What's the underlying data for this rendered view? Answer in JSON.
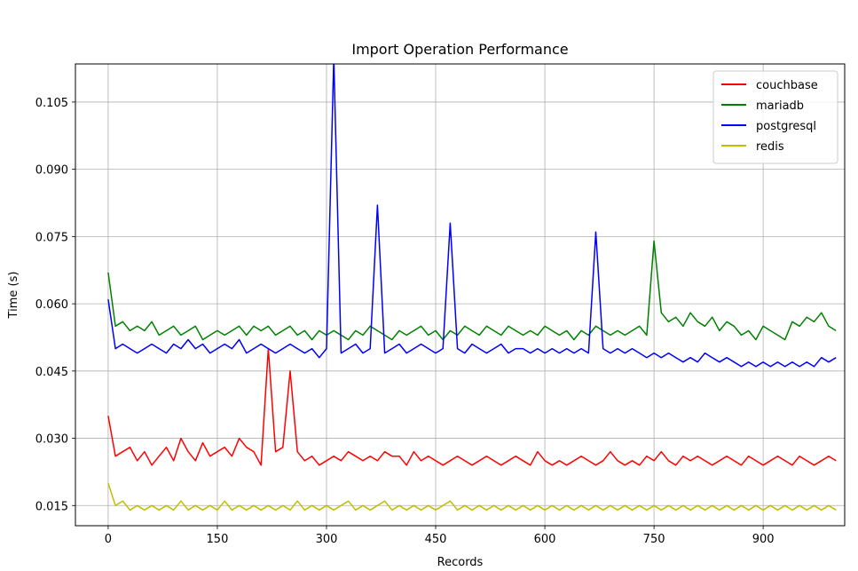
{
  "chart_data": {
    "type": "line",
    "title": "Import Operation Performance",
    "xlabel": "Records",
    "ylabel": "Time (s)",
    "xlim": [
      -45,
      1012
    ],
    "ylim": [
      0.0105,
      0.1135
    ],
    "xticks": [
      0,
      150,
      300,
      450,
      600,
      750,
      900
    ],
    "xtick_labels": [
      "0",
      "150",
      "300",
      "450",
      "600",
      "750",
      "900"
    ],
    "yticks": [
      0.015,
      0.03,
      0.045,
      0.06,
      0.075,
      0.09,
      0.105
    ],
    "ytick_labels": [
      "0.015",
      "0.030",
      "0.045",
      "0.060",
      "0.075",
      "0.090",
      "0.105"
    ],
    "grid": true,
    "legend_position": "top-right",
    "series": [
      {
        "name": "couchbase",
        "color": "#ff0000",
        "x": [
          0,
          10,
          20,
          30,
          40,
          50,
          60,
          70,
          80,
          90,
          100,
          110,
          120,
          130,
          140,
          150,
          160,
          170,
          180,
          190,
          200,
          210,
          220,
          230,
          240,
          250,
          260,
          270,
          280,
          290,
          300,
          310,
          320,
          330,
          340,
          350,
          360,
          370,
          380,
          390,
          400,
          410,
          420,
          430,
          440,
          450,
          460,
          470,
          480,
          490,
          500,
          510,
          520,
          530,
          540,
          550,
          560,
          570,
          580,
          590,
          600,
          610,
          620,
          630,
          640,
          650,
          660,
          670,
          680,
          690,
          700,
          710,
          720,
          730,
          740,
          750,
          760,
          770,
          780,
          790,
          800,
          810,
          820,
          830,
          840,
          850,
          860,
          870,
          880,
          890,
          900,
          910,
          920,
          930,
          940,
          950,
          960,
          970,
          980,
          990,
          1000
        ],
        "values": [
          0.035,
          0.026,
          0.027,
          0.028,
          0.025,
          0.027,
          0.024,
          0.026,
          0.028,
          0.025,
          0.03,
          0.027,
          0.025,
          0.029,
          0.026,
          0.027,
          0.028,
          0.026,
          0.03,
          0.028,
          0.027,
          0.024,
          0.05,
          0.027,
          0.028,
          0.045,
          0.027,
          0.025,
          0.026,
          0.024,
          0.025,
          0.026,
          0.025,
          0.027,
          0.026,
          0.025,
          0.026,
          0.025,
          0.027,
          0.026,
          0.026,
          0.024,
          0.027,
          0.025,
          0.026,
          0.025,
          0.024,
          0.025,
          0.026,
          0.025,
          0.024,
          0.025,
          0.026,
          0.025,
          0.024,
          0.025,
          0.026,
          0.025,
          0.024,
          0.027,
          0.025,
          0.024,
          0.025,
          0.024,
          0.025,
          0.026,
          0.025,
          0.024,
          0.025,
          0.027,
          0.025,
          0.024,
          0.025,
          0.024,
          0.026,
          0.025,
          0.027,
          0.025,
          0.024,
          0.026,
          0.025,
          0.026,
          0.025,
          0.024,
          0.025,
          0.026,
          0.025,
          0.024,
          0.026,
          0.025,
          0.024,
          0.025,
          0.026,
          0.025,
          0.024,
          0.026,
          0.025,
          0.024,
          0.025,
          0.026,
          0.025
        ]
      },
      {
        "name": "mariadb",
        "color": "#008000",
        "x": [
          0,
          10,
          20,
          30,
          40,
          50,
          60,
          70,
          80,
          90,
          100,
          110,
          120,
          130,
          140,
          150,
          160,
          170,
          180,
          190,
          200,
          210,
          220,
          230,
          240,
          250,
          260,
          270,
          280,
          290,
          300,
          310,
          320,
          330,
          340,
          350,
          360,
          370,
          380,
          390,
          400,
          410,
          420,
          430,
          440,
          450,
          460,
          470,
          480,
          490,
          500,
          510,
          520,
          530,
          540,
          550,
          560,
          570,
          580,
          590,
          600,
          610,
          620,
          630,
          640,
          650,
          660,
          670,
          680,
          690,
          700,
          710,
          720,
          730,
          740,
          750,
          760,
          770,
          780,
          790,
          800,
          810,
          820,
          830,
          840,
          850,
          860,
          870,
          880,
          890,
          900,
          910,
          920,
          930,
          940,
          950,
          960,
          970,
          980,
          990,
          1000
        ],
        "values": [
          0.067,
          0.055,
          0.056,
          0.054,
          0.055,
          0.054,
          0.056,
          0.053,
          0.054,
          0.055,
          0.053,
          0.054,
          0.055,
          0.052,
          0.053,
          0.054,
          0.053,
          0.054,
          0.055,
          0.053,
          0.055,
          0.054,
          0.055,
          0.053,
          0.054,
          0.055,
          0.053,
          0.054,
          0.052,
          0.054,
          0.053,
          0.054,
          0.053,
          0.052,
          0.054,
          0.053,
          0.055,
          0.054,
          0.053,
          0.052,
          0.054,
          0.053,
          0.054,
          0.055,
          0.053,
          0.054,
          0.052,
          0.054,
          0.053,
          0.055,
          0.054,
          0.053,
          0.055,
          0.054,
          0.053,
          0.055,
          0.054,
          0.053,
          0.054,
          0.053,
          0.055,
          0.054,
          0.053,
          0.054,
          0.052,
          0.054,
          0.053,
          0.055,
          0.054,
          0.053,
          0.054,
          0.053,
          0.054,
          0.055,
          0.053,
          0.074,
          0.058,
          0.056,
          0.057,
          0.055,
          0.058,
          0.056,
          0.055,
          0.057,
          0.054,
          0.056,
          0.055,
          0.053,
          0.054,
          0.052,
          0.055,
          0.054,
          0.053,
          0.052,
          0.056,
          0.055,
          0.057,
          0.056,
          0.058,
          0.055,
          0.054
        ]
      },
      {
        "name": "postgresql",
        "color": "#0000ff",
        "x": [
          0,
          10,
          20,
          30,
          40,
          50,
          60,
          70,
          80,
          90,
          100,
          110,
          120,
          130,
          140,
          150,
          160,
          170,
          180,
          190,
          200,
          210,
          220,
          230,
          240,
          250,
          260,
          270,
          280,
          290,
          300,
          310,
          320,
          330,
          340,
          350,
          360,
          370,
          380,
          390,
          400,
          410,
          420,
          430,
          440,
          450,
          460,
          470,
          480,
          490,
          500,
          510,
          520,
          530,
          540,
          550,
          560,
          570,
          580,
          590,
          600,
          610,
          620,
          630,
          640,
          650,
          660,
          670,
          680,
          690,
          700,
          710,
          720,
          730,
          740,
          750,
          760,
          770,
          780,
          790,
          800,
          810,
          820,
          830,
          840,
          850,
          860,
          870,
          880,
          890,
          900,
          910,
          920,
          930,
          940,
          950,
          960,
          970,
          980,
          990,
          1000
        ],
        "values": [
          0.061,
          0.05,
          0.051,
          0.05,
          0.049,
          0.05,
          0.051,
          0.05,
          0.049,
          0.051,
          0.05,
          0.052,
          0.05,
          0.051,
          0.049,
          0.05,
          0.051,
          0.05,
          0.052,
          0.049,
          0.05,
          0.051,
          0.05,
          0.049,
          0.05,
          0.051,
          0.05,
          0.049,
          0.05,
          0.048,
          0.05,
          0.115,
          0.049,
          0.05,
          0.051,
          0.049,
          0.05,
          0.082,
          0.049,
          0.05,
          0.051,
          0.049,
          0.05,
          0.051,
          0.05,
          0.049,
          0.05,
          0.078,
          0.05,
          0.049,
          0.051,
          0.05,
          0.049,
          0.05,
          0.051,
          0.049,
          0.05,
          0.05,
          0.049,
          0.05,
          0.049,
          0.05,
          0.049,
          0.05,
          0.049,
          0.05,
          0.049,
          0.076,
          0.05,
          0.049,
          0.05,
          0.049,
          0.05,
          0.049,
          0.048,
          0.049,
          0.048,
          0.049,
          0.048,
          0.047,
          0.048,
          0.047,
          0.049,
          0.048,
          0.047,
          0.048,
          0.047,
          0.046,
          0.047,
          0.046,
          0.047,
          0.046,
          0.047,
          0.046,
          0.047,
          0.046,
          0.047,
          0.046,
          0.048,
          0.047,
          0.048
        ]
      },
      {
        "name": "redis",
        "color": "#bfbf00",
        "x": [
          0,
          10,
          20,
          30,
          40,
          50,
          60,
          70,
          80,
          90,
          100,
          110,
          120,
          130,
          140,
          150,
          160,
          170,
          180,
          190,
          200,
          210,
          220,
          230,
          240,
          250,
          260,
          270,
          280,
          290,
          300,
          310,
          320,
          330,
          340,
          350,
          360,
          370,
          380,
          390,
          400,
          410,
          420,
          430,
          440,
          450,
          460,
          470,
          480,
          490,
          500,
          510,
          520,
          530,
          540,
          550,
          560,
          570,
          580,
          590,
          600,
          610,
          620,
          630,
          640,
          650,
          660,
          670,
          680,
          690,
          700,
          710,
          720,
          730,
          740,
          750,
          760,
          770,
          780,
          790,
          800,
          810,
          820,
          830,
          840,
          850,
          860,
          870,
          880,
          890,
          900,
          910,
          920,
          930,
          940,
          950,
          960,
          970,
          980,
          990,
          1000
        ],
        "values": [
          0.02,
          0.015,
          0.016,
          0.014,
          0.015,
          0.014,
          0.015,
          0.014,
          0.015,
          0.014,
          0.016,
          0.014,
          0.015,
          0.014,
          0.015,
          0.014,
          0.016,
          0.014,
          0.015,
          0.014,
          0.015,
          0.014,
          0.015,
          0.014,
          0.015,
          0.014,
          0.016,
          0.014,
          0.015,
          0.014,
          0.015,
          0.014,
          0.015,
          0.016,
          0.014,
          0.015,
          0.014,
          0.015,
          0.016,
          0.014,
          0.015,
          0.014,
          0.015,
          0.014,
          0.015,
          0.014,
          0.015,
          0.016,
          0.014,
          0.015,
          0.014,
          0.015,
          0.014,
          0.015,
          0.014,
          0.015,
          0.014,
          0.015,
          0.014,
          0.015,
          0.014,
          0.015,
          0.014,
          0.015,
          0.014,
          0.015,
          0.014,
          0.015,
          0.014,
          0.015,
          0.014,
          0.015,
          0.014,
          0.015,
          0.014,
          0.015,
          0.014,
          0.015,
          0.014,
          0.015,
          0.014,
          0.015,
          0.014,
          0.015,
          0.014,
          0.015,
          0.014,
          0.015,
          0.014,
          0.015,
          0.014,
          0.015,
          0.014,
          0.015,
          0.014,
          0.015,
          0.014,
          0.015,
          0.014,
          0.015,
          0.014
        ]
      }
    ]
  }
}
